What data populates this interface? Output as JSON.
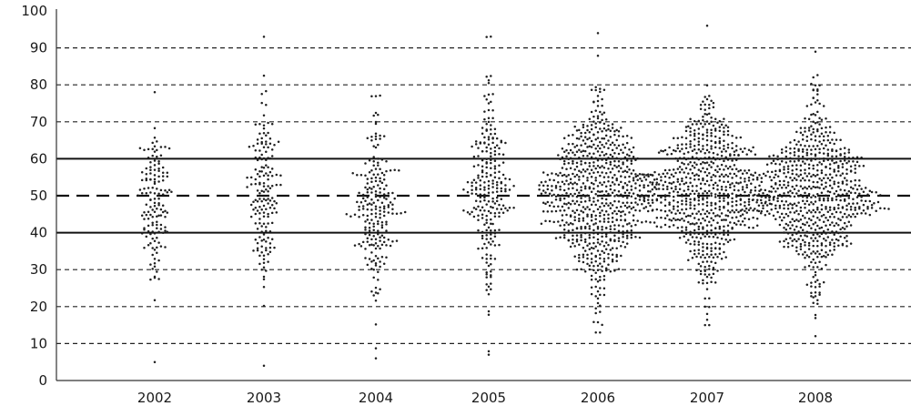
{
  "chart_data": {
    "type": "scatter",
    "subtype": "beeswarm",
    "title": "",
    "xlabel": "",
    "ylabel": "",
    "categories": [
      "2002",
      "2003",
      "2004",
      "2005",
      "2006",
      "2007",
      "2008"
    ],
    "ylim": [
      0,
      100
    ],
    "yticks": [
      "0",
      "10",
      "20",
      "30",
      "40",
      "50",
      "60",
      "70",
      "80",
      "90",
      "100"
    ],
    "grid": "horizontal dashed every 10",
    "reference_lines": [
      {
        "y": 40,
        "style": "solid"
      },
      {
        "y": 50,
        "style": "dashed"
      },
      {
        "y": 60,
        "style": "solid"
      }
    ],
    "series": [
      {
        "category": "2002",
        "count": 145,
        "min": 5,
        "max": 78,
        "center": 48,
        "spread": 10
      },
      {
        "category": "2003",
        "count": 165,
        "min": 4,
        "max": 93,
        "center": 50,
        "spread": 13
      },
      {
        "category": "2004",
        "count": 210,
        "min": 6,
        "max": 77,
        "center": 47,
        "spread": 11
      },
      {
        "category": "2005",
        "count": 240,
        "min": 7,
        "max": 93,
        "center": 52,
        "spread": 13
      },
      {
        "category": "2006",
        "count": 720,
        "min": 13,
        "max": 94,
        "center": 50,
        "spread": 12
      },
      {
        "category": "2007",
        "count": 700,
        "min": 15,
        "max": 96,
        "center": 51,
        "spread": 11
      },
      {
        "category": "2008",
        "count": 680,
        "min": 12,
        "max": 89,
        "center": 50,
        "spread": 11
      }
    ]
  }
}
